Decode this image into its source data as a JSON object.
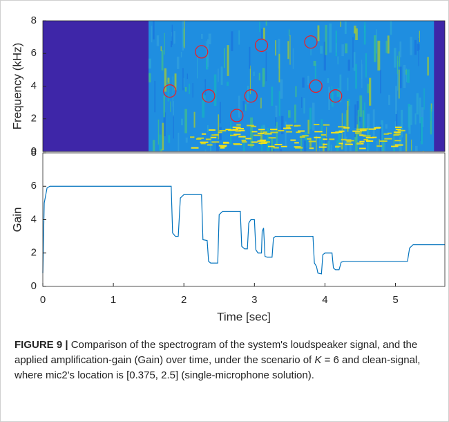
{
  "chart_data": [
    {
      "type": "spectrogram",
      "ylabel": "Frequency (kHz)",
      "xlim": [
        0,
        5.7
      ],
      "ylim": [
        0,
        8
      ],
      "yticks": [
        0,
        2,
        4,
        6,
        8
      ],
      "series": [
        {
          "color": "#e8202a",
          "x": [
            1.8,
            2.25,
            2.35,
            2.75,
            2.95,
            3.1,
            3.8,
            3.87,
            4.15
          ],
          "values": [
            3.7,
            6.1,
            3.4,
            2.2,
            3.4,
            6.5,
            6.7,
            4.0,
            3.4
          ]
        }
      ]
    },
    {
      "type": "line",
      "xlabel": "Time [sec]",
      "ylabel": "Gain",
      "xlim": [
        0,
        5.7
      ],
      "ylim": [
        0,
        8
      ],
      "xticks": [
        0,
        1,
        2,
        3,
        4,
        5
      ],
      "yticks": [
        0,
        2,
        4,
        6,
        8
      ],
      "series": [
        {
          "color": "#0072bd",
          "x": [
            0,
            0.02,
            0.06,
            0.1,
            1.82,
            1.84,
            1.88,
            1.92,
            1.95,
            2.0,
            2.25,
            2.27,
            2.33,
            2.35,
            2.38,
            2.48,
            2.5,
            2.55,
            2.8,
            2.82,
            2.86,
            2.9,
            2.92,
            2.95,
            3.0,
            3.02,
            3.05,
            3.1,
            3.11,
            3.13,
            3.15,
            3.18,
            3.25,
            3.27,
            3.3,
            3.83,
            3.85,
            3.88,
            3.9,
            3.95,
            3.97,
            4.0,
            4.1,
            4.12,
            4.15,
            4.2,
            4.23,
            4.27,
            5.17,
            5.2,
            5.25,
            5.7
          ],
          "values": [
            0.8,
            5,
            5.9,
            6,
            6,
            3.2,
            3,
            3,
            5.3,
            5.5,
            5.5,
            2.8,
            2.75,
            1.5,
            1.4,
            1.4,
            4.3,
            4.5,
            4.5,
            2.4,
            2.25,
            2.25,
            3.8,
            4,
            4,
            2.2,
            2.0,
            2.0,
            3.3,
            3.5,
            1.8,
            1.75,
            1.75,
            2.9,
            3.0,
            3.0,
            1.4,
            1.2,
            0.8,
            0.75,
            1.9,
            2.0,
            2.0,
            1.1,
            1.0,
            1.0,
            1.45,
            1.5,
            1.5,
            2.3,
            2.5,
            2.5
          ]
        }
      ]
    }
  ],
  "caption": {
    "label": "FIGURE 9 |",
    "parts": [
      "Comparison of the spectrogram of the system's loudspeaker signal, and the applied amplification-gain (Gain) over time, under the scenario of ",
      "K",
      " = 6 and clean-signal, where mic2's location is [0.375, 2.5] (single-microphone solution)."
    ]
  }
}
